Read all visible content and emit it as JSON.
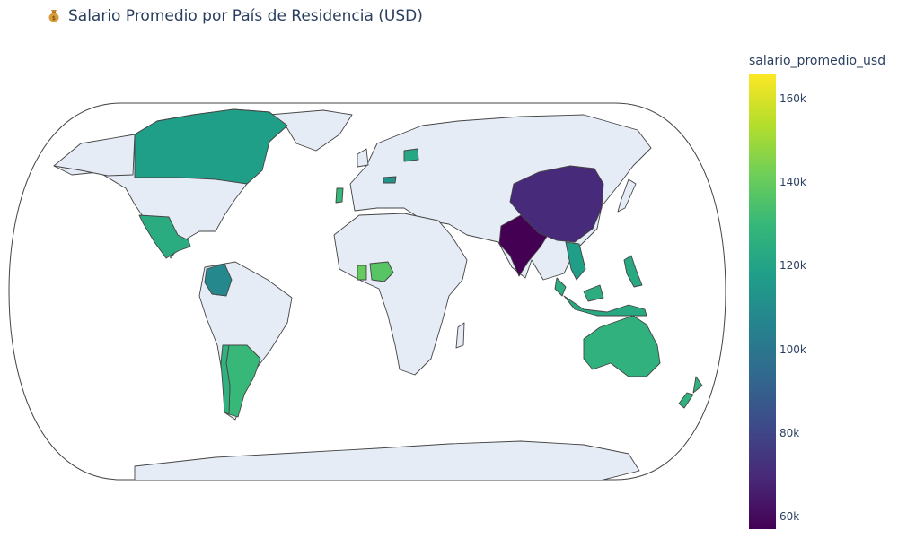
{
  "title": "Salario Promedio por País de Residencia (USD)",
  "title_icon": "money-bag-icon",
  "colorbar": {
    "title": "salario_promedio_usd",
    "min": 57000,
    "max": 166000,
    "ticks": [
      {
        "value": 60000,
        "label": "60k"
      },
      {
        "value": 80000,
        "label": "80k"
      },
      {
        "value": 100000,
        "label": "100k"
      },
      {
        "value": 120000,
        "label": "120k"
      },
      {
        "value": 140000,
        "label": "140k"
      },
      {
        "value": 160000,
        "label": "160k"
      }
    ],
    "colorscale": "viridis"
  },
  "colors": {
    "land_default": "#e5ecf6",
    "border": "#444444",
    "scale": [
      "#440154",
      "#482878",
      "#3e4989",
      "#31688e",
      "#26828e",
      "#1f9e89",
      "#35b779",
      "#6ece58",
      "#b5de2b",
      "#fde725"
    ]
  },
  "chart_data": {
    "type": "choropleth",
    "title": "Salario Promedio por País de Residencia (USD)",
    "colorbar_title": "salario_promedio_usd",
    "projection": "natural earth",
    "countries": [
      {
        "name": "Canada",
        "value": 118000
      },
      {
        "name": "Mexico",
        "value": 124000
      },
      {
        "name": "Colombia",
        "value": 108000
      },
      {
        "name": "Argentina",
        "value": 130000
      },
      {
        "name": "Chile",
        "value": 127000
      },
      {
        "name": "Portugal",
        "value": 130000
      },
      {
        "name": "Austria",
        "value": 113000
      },
      {
        "name": "Belarus",
        "value": 122000
      },
      {
        "name": "Nigeria",
        "value": 137000
      },
      {
        "name": "Ghana",
        "value": 140000
      },
      {
        "name": "India",
        "value": 57000
      },
      {
        "name": "China",
        "value": 70000
      },
      {
        "name": "Vietnam",
        "value": 118000
      },
      {
        "name": "Malaysia",
        "value": 125000
      },
      {
        "name": "Indonesia",
        "value": 123000
      },
      {
        "name": "Philippines",
        "value": 123000
      },
      {
        "name": "Australia",
        "value": 127000
      },
      {
        "name": "New Zealand",
        "value": 127000
      }
    ]
  }
}
